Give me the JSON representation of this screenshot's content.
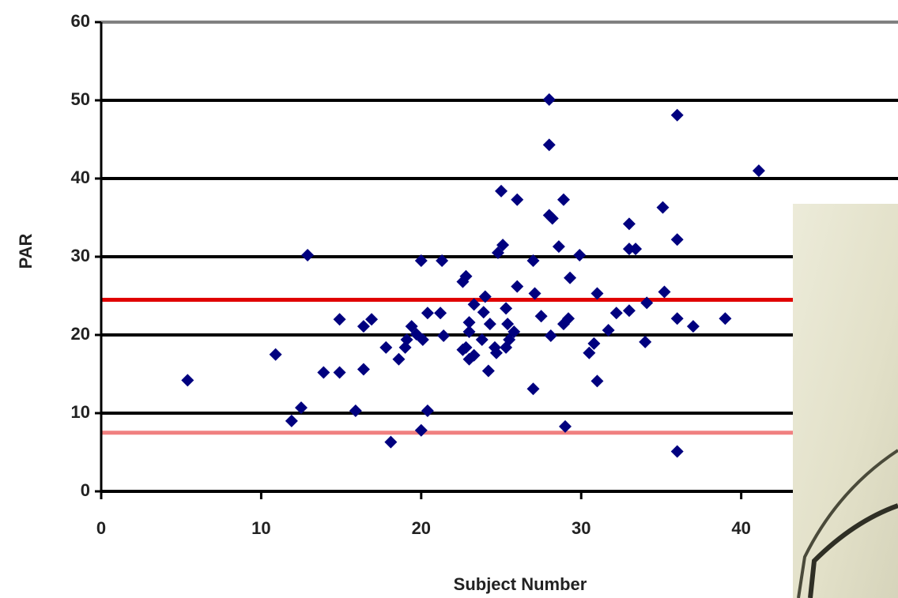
{
  "chart_data": {
    "type": "scatter",
    "x_label": "Subject Number",
    "y_label": "PAR",
    "xlim": [
      0,
      49.8
    ],
    "xticks": [
      0,
      10,
      20,
      30,
      40
    ],
    "ylim": [
      0,
      60
    ],
    "yticks": [
      0,
      10,
      20,
      30,
      40,
      50,
      60
    ],
    "grid": true,
    "color": "#00007f",
    "reference_lines": [
      {
        "value": 24.5,
        "color": "#e00000"
      },
      {
        "value": 7.5,
        "color": "#f08080"
      }
    ],
    "x": [
      5.4,
      10.9,
      12.9,
      11.9,
      12.5,
      13.9,
      14.9,
      14.9,
      15.9,
      16.4,
      16.4,
      16.9,
      17.8,
      18.1,
      18.6,
      19,
      19.4,
      20,
      20,
      20.4,
      20.1,
      20.4,
      21.2,
      21.3,
      21.4,
      22.6,
      22.8,
      22.8,
      23,
      23.3,
      23.8,
      24,
      24.2,
      24.3,
      24.6,
      24.8,
      25,
      25.3,
      25.5,
      25.8,
      26,
      26,
      27,
      27,
      27.1,
      27.5,
      28,
      28,
      28,
      28.2,
      28.1,
      28.6,
      28.9,
      29,
      28.9,
      29.2,
      29.3,
      29.9,
      30.5,
      30.8,
      31,
      31,
      31.7,
      32.2,
      33,
      33,
      33,
      33.4,
      34,
      34.1,
      35.1,
      35.2,
      36,
      36,
      36,
      36,
      37,
      39,
      41.1,
      23.3,
      23,
      23.9,
      24.7,
      25.3,
      22.6,
      23,
      25.4,
      25.1,
      19.1,
      19.7
    ],
    "values": [
      14.2,
      17.5,
      30.2,
      9,
      10.7,
      15.2,
      15.2,
      22,
      10.3,
      15.6,
      21.1,
      22,
      18.4,
      6.3,
      16.9,
      18.4,
      21.1,
      29.5,
      7.8,
      10.3,
      19.4,
      22.8,
      22.8,
      29.5,
      19.9,
      26.8,
      27.5,
      18.4,
      20.4,
      23.9,
      19.4,
      24.9,
      15.4,
      21.4,
      18.4,
      30.5,
      38.4,
      23.4,
      19.4,
      20.4,
      37.3,
      26.2,
      13.1,
      29.5,
      25.3,
      22.4,
      50.1,
      44.3,
      35.3,
      34.9,
      19.9,
      31.3,
      37.3,
      8.3,
      21.4,
      22.1,
      27.3,
      30.2,
      17.7,
      18.9,
      14.1,
      25.3,
      20.6,
      22.8,
      34.2,
      31,
      23.1,
      31,
      19.1,
      24.1,
      36.3,
      25.5,
      48.1,
      32.2,
      22.1,
      5.1,
      21.1,
      22.1,
      41,
      17.4,
      21.6,
      22.9,
      17.7,
      18.4,
      18.1,
      16.9,
      21.4,
      31.5,
      19.4,
      20.1
    ]
  }
}
